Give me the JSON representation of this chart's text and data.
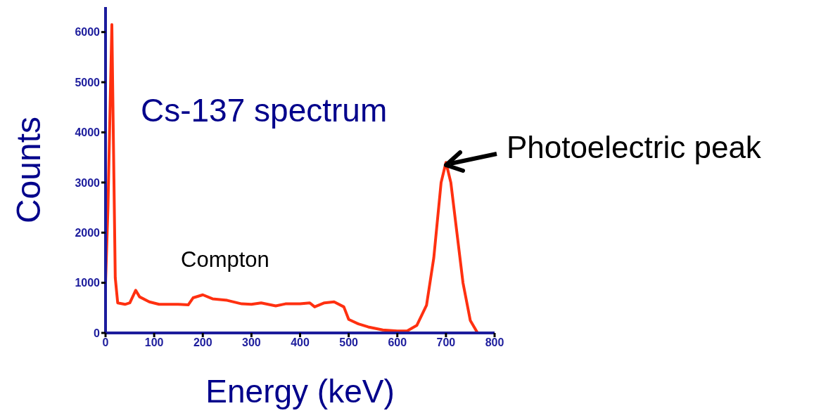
{
  "chart_data": {
    "type": "line",
    "title": "Cs-137 spectrum",
    "xlabel": "Energy (keV)",
    "ylabel": "Counts",
    "x": [
      0,
      5,
      13,
      20,
      25,
      40,
      50,
      62,
      70,
      90,
      110,
      150,
      170,
      180,
      200,
      220,
      250,
      280,
      300,
      320,
      350,
      370,
      400,
      420,
      430,
      450,
      470,
      490,
      500,
      520,
      540,
      570,
      600,
      620,
      640,
      660,
      675,
      690,
      700,
      710,
      720,
      735,
      750,
      765
    ],
    "series": [
      {
        "color": "#ff3010",
        "values": [
          1000,
          2500,
          6150,
          1100,
          600,
          570,
          600,
          850,
          720,
          620,
          570,
          570,
          560,
          700,
          760,
          680,
          650,
          580,
          570,
          600,
          540,
          580,
          580,
          600,
          520,
          600,
          620,
          520,
          270,
          180,
          120,
          60,
          40,
          40,
          150,
          550,
          1500,
          3000,
          3400,
          3000,
          2200,
          1000,
          250,
          0
        ]
      }
    ],
    "xlim": [
      0,
      800
    ],
    "xticks": [
      0,
      100,
      200,
      300,
      400,
      500,
      600,
      700,
      800
    ],
    "ylim": [
      0,
      6500
    ],
    "yticks": [
      0,
      1000,
      2000,
      3000,
      4000,
      5000,
      6000
    ],
    "marker": "none",
    "line_style": "solid",
    "annotations": [
      "Compton",
      {
        "text": "Photoelectric peak",
        "x": 700,
        "y": 3400
      }
    ]
  }
}
